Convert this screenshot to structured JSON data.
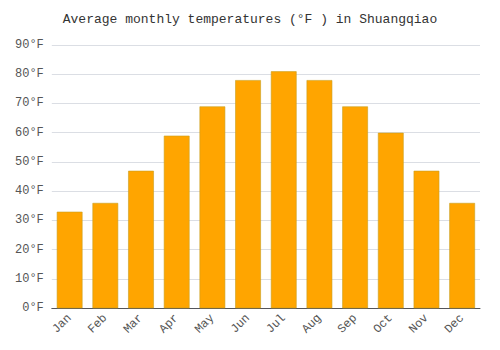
{
  "chart_data": {
    "type": "bar",
    "title": "Average monthly temperatures (°F ) in Shuangqiao",
    "categories": [
      "Jan",
      "Feb",
      "Mar",
      "Apr",
      "May",
      "Jun",
      "Jul",
      "Aug",
      "Sep",
      "Oct",
      "Nov",
      "Dec"
    ],
    "values": [
      33,
      36,
      47,
      59,
      69,
      78,
      81,
      78,
      69,
      60,
      47,
      36
    ],
    "color": "#FFA500",
    "ylim": [
      0,
      90
    ],
    "yticks": [
      {
        "value": 0,
        "label": "0°F"
      },
      {
        "value": 10,
        "label": "10°F"
      },
      {
        "value": 20,
        "label": "20°F"
      },
      {
        "value": 30,
        "label": "30°F"
      },
      {
        "value": 40,
        "label": "40°F"
      },
      {
        "value": 50,
        "label": "50°F"
      },
      {
        "value": 60,
        "label": "60°F"
      },
      {
        "value": 70,
        "label": "70°F"
      },
      {
        "value": 80,
        "label": "80°F"
      },
      {
        "value": 90,
        "label": "90°F"
      }
    ],
    "grid": true
  }
}
